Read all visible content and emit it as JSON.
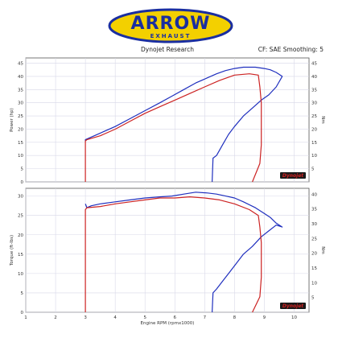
{
  "logo": {
    "brand": "ARROW",
    "sub": "EXHAUST"
  },
  "header": {
    "source": "Dynojet Research",
    "settings": "CF: SAE Smoothing: 5"
  },
  "watermark": {
    "text": "Dynojet"
  },
  "colors": {
    "blue": "#1f2fbe",
    "red": "#cc2222",
    "grid": "#d8d8e8",
    "logo_yellow": "#f3d000",
    "logo_blue": "#1a2ea0"
  },
  "chart_data": [
    {
      "type": "line",
      "ylabel": "Power (hp)",
      "yrightlabel": "Nm",
      "xlim": [
        1,
        10.5
      ],
      "ylim": [
        0,
        47
      ],
      "xticks": [
        1,
        2,
        3,
        4,
        5,
        6,
        7,
        8,
        9,
        10
      ],
      "yticks": [
        0,
        5,
        10,
        15,
        20,
        25,
        30,
        35,
        40,
        45
      ],
      "grid": true,
      "series": [
        {
          "color": "blue",
          "x": [
            7.25,
            7.28,
            7.4,
            7.6,
            7.8,
            8.0,
            8.3,
            8.6,
            8.9,
            9.15,
            9.4,
            9.6,
            9.4,
            9.2,
            9.0,
            8.7,
            8.3,
            8.0,
            7.7,
            7.4,
            7.1,
            6.7,
            6.3,
            5.9,
            5.5,
            5.0,
            4.5,
            4.0,
            3.5,
            3.2,
            3.0,
            3.0
          ],
          "y": [
            0,
            9,
            10,
            14,
            18,
            21,
            25,
            28,
            31,
            33,
            36,
            40,
            41.5,
            42.5,
            43,
            43.5,
            43.5,
            43,
            42.2,
            41,
            39.5,
            37.5,
            35,
            32.5,
            30,
            27,
            24,
            21,
            18.5,
            17,
            16,
            15.5
          ]
        },
        {
          "color": "red",
          "x": [
            3.0,
            3.0,
            3.05,
            3.5,
            4.0,
            4.5,
            5.0,
            5.5,
            6.0,
            6.5,
            7.0,
            7.5,
            8.0,
            8.5,
            8.8,
            8.85,
            8.9,
            8.9,
            8.85,
            8.6
          ],
          "y": [
            0,
            15.5,
            16,
            17.5,
            20,
            23,
            26,
            28.5,
            31,
            33.5,
            36,
            38.5,
            40.5,
            41,
            40.5,
            36,
            30,
            14,
            7,
            0
          ]
        }
      ]
    },
    {
      "type": "line",
      "ylabel": "Torque (ft-lbs)",
      "yrightlabel": "Nm",
      "xlabel": "Engine RPM (rpmx1000)",
      "xlim": [
        1,
        10.5
      ],
      "ylim": [
        0,
        32
      ],
      "xticks": [
        1,
        2,
        3,
        4,
        5,
        6,
        7,
        8,
        9,
        10
      ],
      "yticks": [
        0,
        5,
        10,
        15,
        20,
        25,
        30
      ],
      "grid": true,
      "series": [
        {
          "color": "blue",
          "x": [
            7.25,
            7.28,
            7.4,
            7.6,
            7.8,
            8.0,
            8.3,
            8.6,
            8.9,
            9.15,
            9.4,
            9.6,
            9.4,
            9.2,
            9.0,
            8.7,
            8.3,
            8.0,
            7.7,
            7.4,
            7.1,
            6.7,
            6.3,
            5.9,
            5.5,
            5.0,
            4.5,
            4.0,
            3.5,
            3.2,
            3.05,
            3.0
          ],
          "y": [
            0,
            5,
            6,
            8,
            10,
            12,
            15,
            17,
            19.5,
            21,
            22.5,
            22,
            23,
            24.5,
            25.5,
            27,
            28.5,
            29.5,
            30,
            30.5,
            30.8,
            31,
            30.5,
            30,
            29.8,
            29.5,
            29,
            28.5,
            28,
            27.5,
            27,
            28
          ]
        },
        {
          "color": "red",
          "x": [
            3.0,
            3.0,
            3.05,
            3.5,
            4.0,
            4.5,
            5.0,
            5.5,
            6.0,
            6.5,
            7.0,
            7.5,
            8.0,
            8.5,
            8.8,
            8.85,
            8.9,
            8.9,
            8.85,
            8.6
          ],
          "y": [
            0,
            26.5,
            27,
            27.3,
            28,
            28.5,
            29,
            29.5,
            29.5,
            29.8,
            29.5,
            29,
            28,
            26.5,
            25,
            22,
            18,
            9,
            4,
            0
          ]
        }
      ]
    }
  ]
}
